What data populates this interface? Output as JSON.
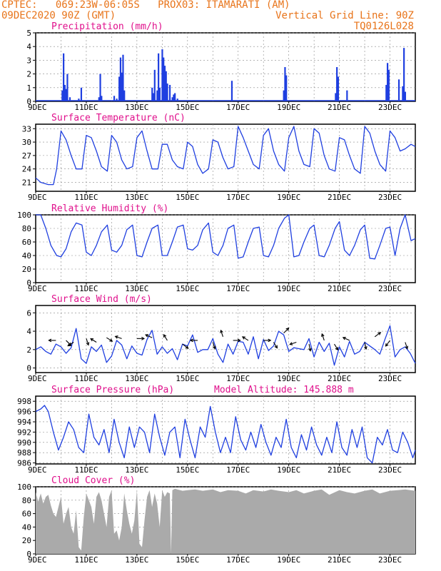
{
  "header": {
    "line1_left": "CPTEC:   069:23W-06:05S   PROX03: ITAMARATI (AM)",
    "line2_left": "09DEC2020 90Z (GMT)",
    "line2_right": "Vertical Grid Line: 90Z",
    "line3_right": "TQ0126L028"
  },
  "colors": {
    "header": "#e8741a",
    "title": "#e0108c",
    "series": "#1f3fe0",
    "cloud": "#aaaaaa",
    "grid": "#888888"
  },
  "x_tick_labels": [
    "9DEC",
    "11DEC",
    "13DEC",
    "15DEC",
    "17DEC",
    "19DEC",
    "21DEC",
    "23DEC"
  ],
  "x_tick_days": [
    9,
    11,
    13,
    15,
    17,
    19,
    21,
    23
  ],
  "chart_data": [
    {
      "id": "precip",
      "type": "bar",
      "title": "Precipitation (mm/h)",
      "ylim": [
        0,
        5
      ],
      "yticks": [
        0,
        1,
        2,
        3,
        4,
        5
      ],
      "x": [
        10.05,
        10.1,
        10.15,
        10.2,
        10.25,
        10.35,
        10.7,
        10.8,
        11.5,
        11.55,
        11.6,
        12.1,
        12.2,
        12.3,
        12.35,
        12.4,
        12.45,
        12.5,
        13.6,
        13.65,
        13.7,
        13.8,
        13.85,
        13.9,
        14.0,
        14.05,
        14.1,
        14.15,
        14.2,
        14.3,
        14.4,
        14.45,
        14.5,
        14.6,
        16.75,
        18.8,
        18.85,
        18.9,
        20.85,
        20.9,
        20.95,
        21.3,
        22.85,
        22.9,
        22.95,
        23.35,
        23.5,
        23.55,
        23.6
      ],
      "y": [
        0.8,
        3.5,
        1.2,
        0.9,
        2.0,
        0.3,
        0.2,
        1.0,
        0.3,
        2.0,
        0.4,
        0.4,
        0.2,
        1.8,
        3.2,
        2.1,
        3.4,
        0.8,
        1.0,
        0.6,
        2.3,
        0.8,
        3.5,
        1.0,
        3.8,
        3.2,
        2.6,
        2.2,
        1.3,
        1.2,
        0.3,
        0.5,
        0.6,
        0.2,
        1.5,
        0.8,
        2.5,
        1.9,
        0.6,
        2.5,
        1.8,
        0.8,
        1.2,
        2.8,
        2.3,
        1.6,
        1.1,
        3.9,
        0.7
      ]
    },
    {
      "id": "temp",
      "type": "line",
      "title": "Surface Temperature (nC)",
      "ylim": [
        19,
        34
      ],
      "yticks": [
        21,
        24,
        27,
        30,
        33
      ],
      "x": [
        9.0,
        9.2,
        9.5,
        9.7,
        9.83,
        10.0,
        10.2,
        10.4,
        10.6,
        10.83,
        11.0,
        11.2,
        11.4,
        11.6,
        11.83,
        12.0,
        12.2,
        12.4,
        12.6,
        12.83,
        13.0,
        13.2,
        13.4,
        13.6,
        13.83,
        14.0,
        14.2,
        14.4,
        14.6,
        14.83,
        15.0,
        15.2,
        15.4,
        15.6,
        15.83,
        16.0,
        16.2,
        16.4,
        16.6,
        16.83,
        17.0,
        17.2,
        17.4,
        17.6,
        17.83,
        18.0,
        18.2,
        18.4,
        18.6,
        18.83,
        19.0,
        19.2,
        19.4,
        19.6,
        19.83,
        20.0,
        20.2,
        20.4,
        20.6,
        20.83,
        21.0,
        21.2,
        21.4,
        21.6,
        21.83,
        22.0,
        22.2,
        22.4,
        22.6,
        22.83,
        23.0,
        23.2,
        23.4,
        23.6,
        23.83,
        24.0
      ],
      "y": [
        22.0,
        21.0,
        20.5,
        20.5,
        24.0,
        32.5,
        30.5,
        27.0,
        24.0,
        24.0,
        31.5,
        31.0,
        28.0,
        24.5,
        23.5,
        31.5,
        30.0,
        26.0,
        24.0,
        24.5,
        31.0,
        32.5,
        28.0,
        24.0,
        24.0,
        29.5,
        29.5,
        26.0,
        24.5,
        24.0,
        30.0,
        29.0,
        25.0,
        23.0,
        24.0,
        30.5,
        30.0,
        26.5,
        24.0,
        24.5,
        33.5,
        31.0,
        28.0,
        25.0,
        24.0,
        31.5,
        33.0,
        28.0,
        25.0,
        23.5,
        31.0,
        33.5,
        28.0,
        25.0,
        24.5,
        33.0,
        32.0,
        27.0,
        24.0,
        23.5,
        31.0,
        30.5,
        27.0,
        24.0,
        23.0,
        33.5,
        32.0,
        28.0,
        25.0,
        23.5,
        32.5,
        31.0,
        28.0,
        28.5,
        29.5,
        29.0
      ]
    },
    {
      "id": "rh",
      "type": "line",
      "title": "Relative Humidity (%)",
      "ylim": [
        0,
        100
      ],
      "yticks": [
        0,
        20,
        40,
        60,
        80,
        100
      ],
      "x": [
        9.0,
        9.2,
        9.4,
        9.6,
        9.83,
        10.0,
        10.2,
        10.4,
        10.6,
        10.83,
        11.0,
        11.2,
        11.4,
        11.6,
        11.83,
        12.0,
        12.2,
        12.4,
        12.6,
        12.83,
        13.0,
        13.2,
        13.4,
        13.6,
        13.83,
        14.0,
        14.2,
        14.4,
        14.6,
        14.83,
        15.0,
        15.2,
        15.4,
        15.6,
        15.83,
        16.0,
        16.2,
        16.4,
        16.6,
        16.83,
        17.0,
        17.2,
        17.4,
        17.6,
        17.83,
        18.0,
        18.2,
        18.4,
        18.6,
        18.83,
        19.0,
        19.2,
        19.4,
        19.6,
        19.83,
        20.0,
        20.2,
        20.4,
        20.6,
        20.83,
        21.0,
        21.2,
        21.4,
        21.6,
        21.83,
        22.0,
        22.2,
        22.4,
        22.6,
        22.83,
        23.0,
        23.2,
        23.4,
        23.6,
        23.83,
        24.0
      ],
      "y": [
        100,
        100,
        80,
        55,
        40,
        38,
        50,
        75,
        88,
        85,
        45,
        40,
        55,
        75,
        85,
        48,
        45,
        55,
        78,
        85,
        40,
        38,
        60,
        80,
        85,
        40,
        40,
        60,
        82,
        85,
        50,
        48,
        55,
        78,
        88,
        45,
        40,
        55,
        80,
        85,
        36,
        38,
        60,
        80,
        82,
        40,
        38,
        55,
        80,
        95,
        100,
        38,
        40,
        60,
        80,
        85,
        40,
        38,
        55,
        80,
        90,
        48,
        40,
        55,
        78,
        85,
        36,
        35,
        55,
        80,
        82,
        40,
        80,
        100,
        62,
        65
      ]
    },
    {
      "id": "wind",
      "type": "line",
      "title": "Surface Wind (m/s)",
      "ylim": [
        -0.5,
        6.8
      ],
      "yticks": [
        0,
        2,
        4,
        6
      ],
      "x": [
        9.0,
        9.2,
        9.4,
        9.6,
        9.8,
        10.0,
        10.2,
        10.4,
        10.6,
        10.8,
        11.0,
        11.2,
        11.4,
        11.6,
        11.8,
        12.0,
        12.2,
        12.4,
        12.6,
        12.8,
        13.0,
        13.2,
        13.4,
        13.6,
        13.8,
        14.0,
        14.2,
        14.4,
        14.6,
        14.8,
        15.0,
        15.2,
        15.4,
        15.6,
        15.8,
        16.0,
        16.2,
        16.4,
        16.6,
        16.8,
        17.0,
        17.2,
        17.4,
        17.6,
        17.8,
        18.0,
        18.2,
        18.4,
        18.6,
        18.8,
        19.0,
        19.2,
        19.4,
        19.6,
        19.8,
        20.0,
        20.2,
        20.4,
        20.6,
        20.8,
        21.0,
        21.2,
        21.4,
        21.6,
        21.8,
        22.0,
        22.2,
        22.4,
        22.6,
        22.8,
        23.0,
        23.2,
        23.4,
        23.6,
        23.8,
        24.0
      ],
      "y": [
        2.0,
        2.3,
        1.8,
        1.5,
        2.6,
        2.3,
        1.6,
        2.2,
        4.3,
        1.0,
        0.5,
        2.3,
        1.8,
        2.5,
        0.6,
        1.3,
        3.0,
        2.5,
        1.0,
        2.4,
        1.6,
        1.4,
        3.1,
        4.1,
        1.5,
        2.3,
        1.6,
        2.1,
        0.9,
        2.6,
        2.4,
        3.6,
        1.7,
        2.0,
        2.0,
        3.2,
        1.5,
        0.6,
        2.6,
        1.5,
        2.9,
        2.8,
        1.5,
        3.4,
        1.0,
        3.1,
        1.9,
        2.4,
        4.0,
        3.6,
        1.8,
        2.2,
        2.1,
        2.0,
        3.2,
        1.2,
        2.8,
        1.8,
        2.7,
        0.3,
        2.3,
        1.2,
        2.9,
        1.5,
        1.8,
        2.8,
        2.4,
        2.0,
        1.5,
        3.1,
        4.6,
        1.2,
        2.0,
        2.3,
        1.6,
        0.5
      ],
      "vectors": [
        {
          "x": 9.8,
          "y": 3.0,
          "u": -1,
          "v": 0
        },
        {
          "x": 10.2,
          "y": 3.0,
          "u": 0.7,
          "v": -0.7
        },
        {
          "x": 10.5,
          "y": 2.8,
          "u": -0.8,
          "v": -0.5
        },
        {
          "x": 11.0,
          "y": 3.2,
          "u": 0.3,
          "v": -0.9
        },
        {
          "x": 11.4,
          "y": 2.8,
          "u": -0.8,
          "v": 0.5
        },
        {
          "x": 11.8,
          "y": 3.3,
          "u": 0.8,
          "v": -0.5
        },
        {
          "x": 12.4,
          "y": 3.2,
          "u": -0.9,
          "v": 0.3
        },
        {
          "x": 13.0,
          "y": 3.2,
          "u": 1,
          "v": 0
        },
        {
          "x": 13.6,
          "y": 3.3,
          "u": -0.9,
          "v": 0.4
        },
        {
          "x": 14.2,
          "y": 3.0,
          "u": -0.5,
          "v": 0.8
        },
        {
          "x": 14.8,
          "y": 2.6,
          "u": 0.8,
          "v": -0.6
        },
        {
          "x": 15.4,
          "y": 3.0,
          "u": -1,
          "v": 0
        },
        {
          "x": 16.0,
          "y": 2.8,
          "u": 0.3,
          "v": -0.9
        },
        {
          "x": 16.4,
          "y": 3.4,
          "u": -0.3,
          "v": 0.9
        },
        {
          "x": 16.8,
          "y": 3.0,
          "u": 1,
          "v": 0
        },
        {
          "x": 17.4,
          "y": 3.0,
          "u": -0.8,
          "v": 0.5
        },
        {
          "x": 18.0,
          "y": 3.0,
          "u": 1,
          "v": 0
        },
        {
          "x": 18.4,
          "y": 2.8,
          "u": 0.5,
          "v": -0.8
        },
        {
          "x": 18.8,
          "y": 3.8,
          "u": 0.7,
          "v": 0.7
        },
        {
          "x": 19.3,
          "y": 2.8,
          "u": -0.9,
          "v": -0.3
        },
        {
          "x": 19.8,
          "y": 2.6,
          "u": 0.2,
          "v": -0.95
        },
        {
          "x": 20.4,
          "y": 3.0,
          "u": -0.3,
          "v": 0.9
        },
        {
          "x": 20.8,
          "y": 2.6,
          "u": 0.5,
          "v": -0.8
        },
        {
          "x": 21.4,
          "y": 3.0,
          "u": -0.9,
          "v": 0.4
        },
        {
          "x": 22.0,
          "y": 2.8,
          "u": 0.2,
          "v": -0.95
        },
        {
          "x": 22.4,
          "y": 3.4,
          "u": 0.8,
          "v": 0.6
        },
        {
          "x": 23.0,
          "y": 3.0,
          "u": -0.6,
          "v": -0.8
        },
        {
          "x": 23.6,
          "y": 2.8,
          "u": 0.3,
          "v": -0.9
        }
      ]
    },
    {
      "id": "press",
      "type": "line",
      "title": "Surface Pressure (hPa)",
      "subtitle": "Model Altitude: 145.888 m",
      "ylim": [
        985.8,
        999
      ],
      "yticks": [
        986,
        988,
        990,
        992,
        994,
        996,
        998
      ],
      "x": [
        9.0,
        9.2,
        9.35,
        9.5,
        9.7,
        9.9,
        10.1,
        10.3,
        10.5,
        10.7,
        10.9,
        11.1,
        11.3,
        11.5,
        11.7,
        11.9,
        12.1,
        12.3,
        12.5,
        12.7,
        12.9,
        13.1,
        13.3,
        13.5,
        13.7,
        13.9,
        14.1,
        14.3,
        14.5,
        14.7,
        14.9,
        15.1,
        15.3,
        15.5,
        15.7,
        15.9,
        16.1,
        16.3,
        16.5,
        16.7,
        16.9,
        17.1,
        17.3,
        17.5,
        17.7,
        17.9,
        18.1,
        18.3,
        18.5,
        18.7,
        18.9,
        19.1,
        19.3,
        19.5,
        19.7,
        19.9,
        20.1,
        20.3,
        20.5,
        20.7,
        20.9,
        21.1,
        21.3,
        21.5,
        21.7,
        21.9,
        22.1,
        22.3,
        22.5,
        22.7,
        22.9,
        23.1,
        23.3,
        23.5,
        23.7,
        23.9,
        24.0
      ],
      "y": [
        996.0,
        996.5,
        997.2,
        996.0,
        992.0,
        988.5,
        991.0,
        994.0,
        992.5,
        989.0,
        988.0,
        995.5,
        991.0,
        989.5,
        992.5,
        988.0,
        994.5,
        990.0,
        987.0,
        993.0,
        989.0,
        993.0,
        992.0,
        988.0,
        995.5,
        991.0,
        987.5,
        992.0,
        993.0,
        987.0,
        994.5,
        990.5,
        987.0,
        993.0,
        991.0,
        997.0,
        992.0,
        988.0,
        991.0,
        988.0,
        995.0,
        990.5,
        988.5,
        992.0,
        989.0,
        993.5,
        990.0,
        987.5,
        991.0,
        989.0,
        994.5,
        989.0,
        987.0,
        991.5,
        988.5,
        993.0,
        989.5,
        987.5,
        991.0,
        988.0,
        994.0,
        989.0,
        987.5,
        992.5,
        989.0,
        993.0,
        987.0,
        986.0,
        991.0,
        989.5,
        992.5,
        988.5,
        988.0,
        992.0,
        990.0,
        987.0,
        988.5
      ]
    },
    {
      "id": "cloud",
      "type": "area",
      "title": "Cloud Cover (%)",
      "ylim": [
        0,
        100
      ],
      "yticks": [
        0,
        20,
        40,
        60,
        80,
        100
      ],
      "x": [
        9.0,
        9.1,
        9.2,
        9.3,
        9.4,
        9.5,
        9.6,
        9.7,
        9.8,
        9.9,
        10.0,
        10.1,
        10.2,
        10.3,
        10.4,
        10.5,
        10.6,
        10.7,
        10.8,
        10.9,
        11.0,
        11.1,
        11.2,
        11.3,
        11.4,
        11.5,
        11.6,
        11.7,
        11.8,
        11.9,
        12.0,
        12.1,
        12.2,
        12.3,
        12.4,
        12.5,
        12.6,
        12.7,
        12.8,
        12.9,
        13.0,
        13.1,
        13.2,
        13.3,
        13.4,
        13.5,
        13.6,
        13.7,
        13.8,
        13.9,
        14.0,
        14.1,
        14.2,
        14.3,
        14.35,
        14.4,
        14.5,
        14.6,
        14.8,
        15.0,
        15.3,
        15.6,
        16.0,
        16.3,
        16.6,
        17.0,
        17.3,
        17.6,
        18.0,
        18.3,
        18.6,
        19.0,
        19.3,
        19.6,
        20.0,
        20.3,
        20.6,
        21.0,
        21.3,
        21.6,
        22.0,
        22.3,
        22.6,
        23.0,
        23.3,
        23.6,
        24.0
      ],
      "y": [
        92,
        78,
        90,
        75,
        85,
        88,
        72,
        60,
        55,
        70,
        85,
        45,
        60,
        70,
        40,
        30,
        65,
        10,
        5,
        55,
        90,
        80,
        70,
        45,
        85,
        92,
        80,
        60,
        40,
        85,
        95,
        30,
        35,
        20,
        40,
        90,
        65,
        45,
        30,
        50,
        95,
        15,
        10,
        50,
        85,
        95,
        70,
        90,
        75,
        40,
        95,
        85,
        92,
        90,
        0,
        95,
        97,
        96,
        94,
        95,
        96,
        94,
        96,
        92,
        95,
        94,
        90,
        95,
        93,
        96,
        94,
        92,
        95,
        90,
        94,
        96,
        88,
        95,
        92,
        90,
        94,
        96,
        90,
        94,
        95,
        96,
        94
      ]
    }
  ]
}
